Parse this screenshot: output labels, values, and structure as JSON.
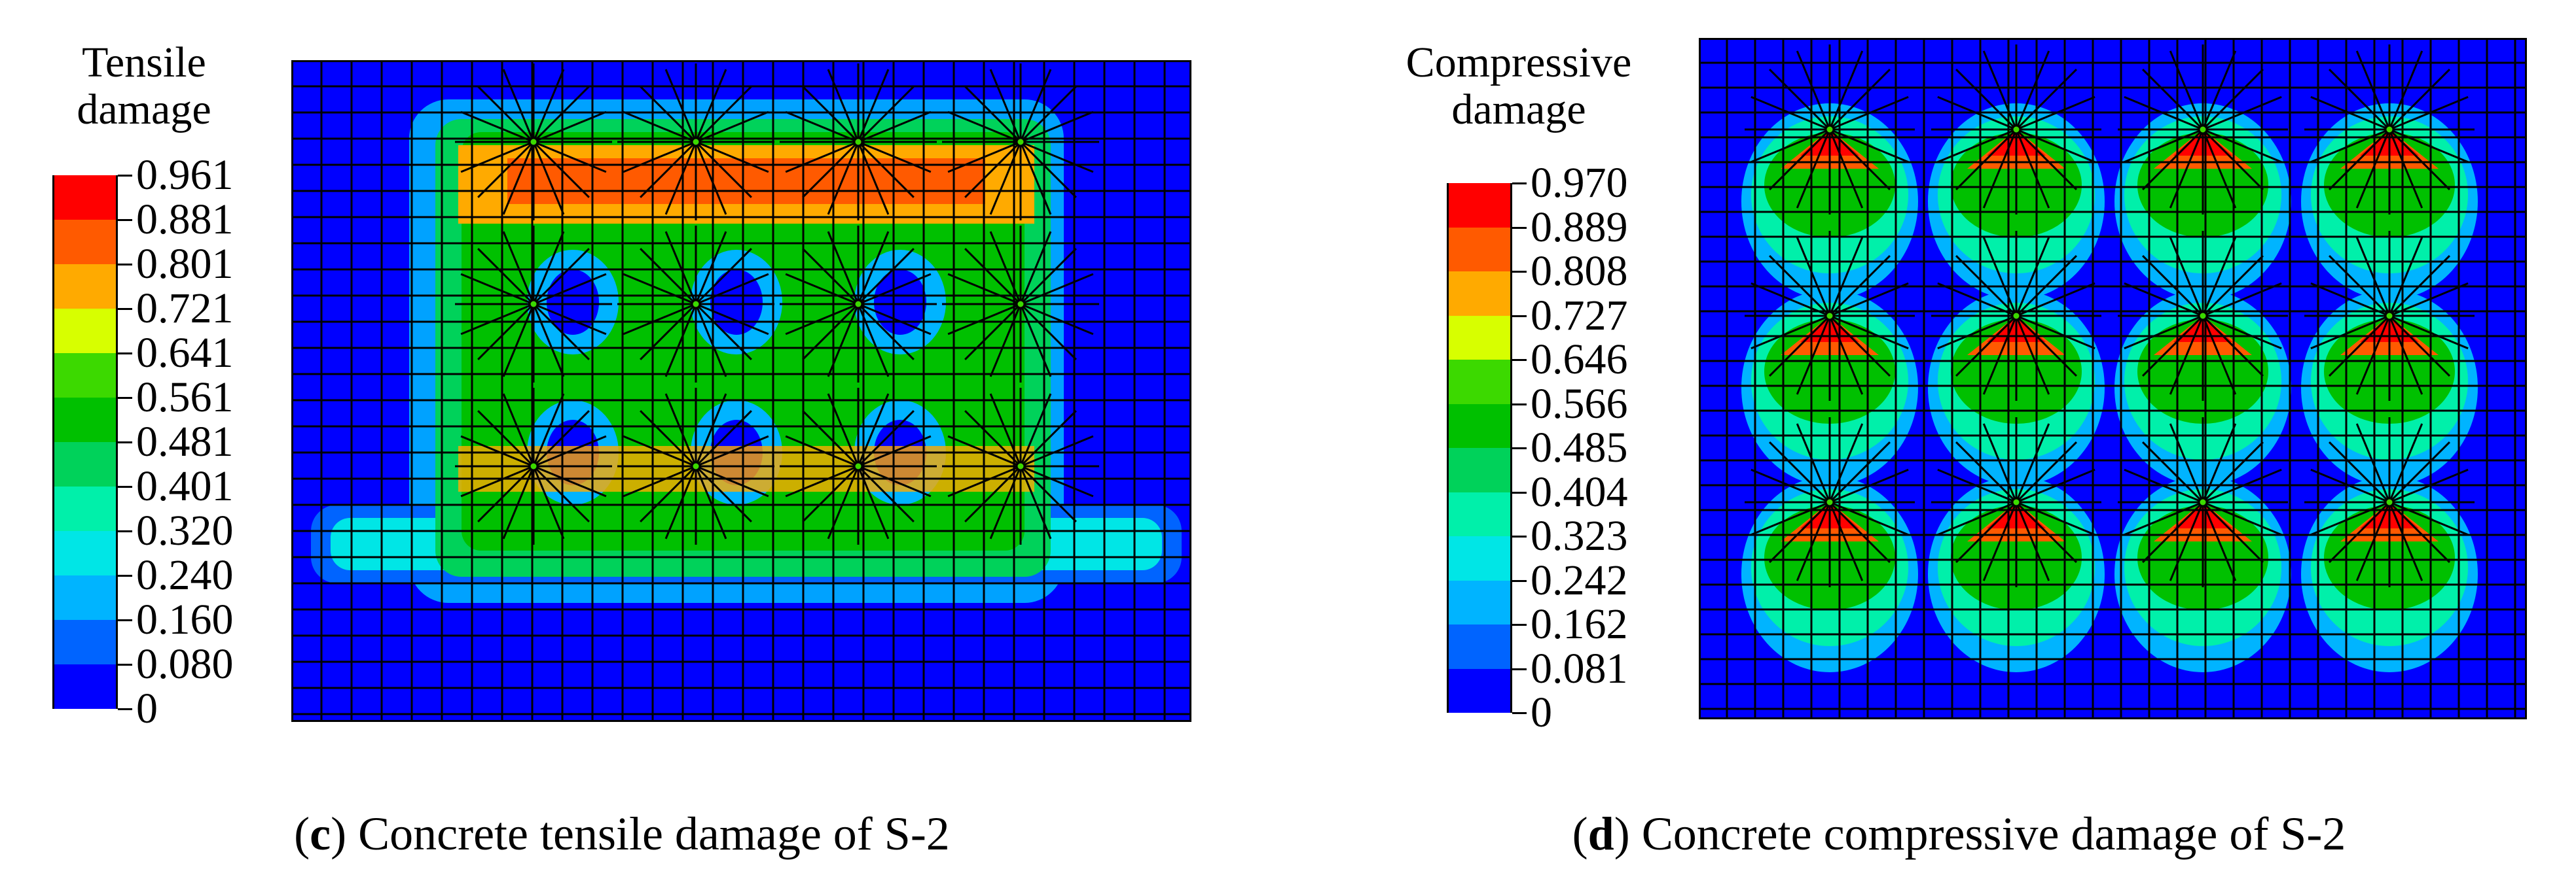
{
  "panels": [
    {
      "id": "c",
      "legend_title_line1": "Tensile",
      "legend_title_line2": "damage",
      "legend_values": [
        "0.961",
        "0.881",
        "0.801",
        "0.721",
        "0.641",
        "0.561",
        "0.481",
        "0.401",
        "0.320",
        "0.240",
        "0.160",
        "0.080",
        "0"
      ],
      "caption_letter": "c",
      "caption_text": "Concrete tensile damage of S-2",
      "nodes_rows": 3,
      "nodes_cols": 4
    },
    {
      "id": "d",
      "legend_title_line1": "Compressive",
      "legend_title_line2": "damage",
      "legend_values": [
        "0.970",
        "0.889",
        "0.808",
        "0.727",
        "0.646",
        "0.566",
        "0.485",
        "0.404",
        "0.323",
        "0.242",
        "0.162",
        "0.081",
        "0"
      ],
      "caption_letter": "d",
      "caption_text": "Concrete compressive damage of S-2",
      "nodes_rows": 3,
      "nodes_cols": 4
    }
  ],
  "colors": {
    "scale": [
      "#ff0000",
      "#ff5a00",
      "#ffaa00",
      "#d7ff00",
      "#3cd900",
      "#00c000",
      "#00d25a",
      "#00f0aa",
      "#00e6e6",
      "#00b4ff",
      "#0064ff",
      "#0000ff"
    ],
    "background": "#0000ff",
    "mesh": "#000000"
  }
}
